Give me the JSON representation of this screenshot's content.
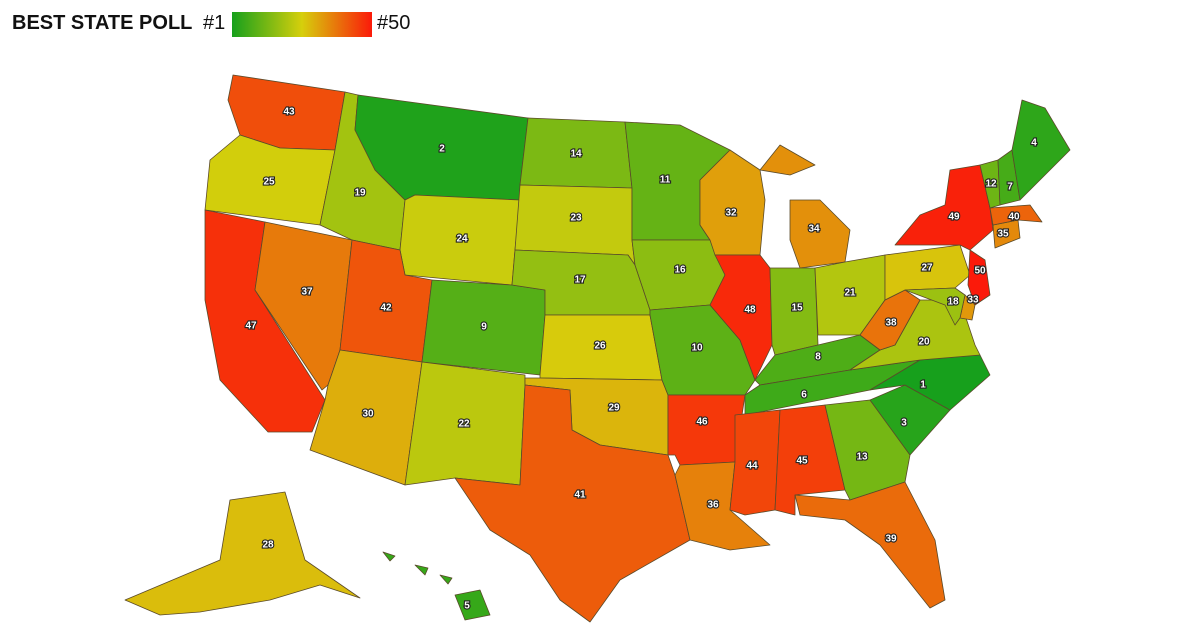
{
  "header": {
    "title": "BEST STATE POLL"
  },
  "legend": {
    "min": {
      "value": 1,
      "label": "#1"
    },
    "max": {
      "value": 50,
      "label": "#50"
    },
    "colors": [
      "#17a01c",
      "#d6cf0c",
      "#fb1a0a"
    ]
  },
  "states": [
    43,
    25,
    47,
    37,
    19,
    2,
    24,
    42,
    9,
    30,
    22,
    14,
    23,
    17,
    26,
    29,
    41,
    11,
    16,
    10,
    46,
    36,
    32,
    48,
    34,
    15,
    21,
    8,
    6,
    44,
    45,
    13,
    39,
    3,
    1,
    20,
    38,
    27,
    49,
    50,
    33,
    18,
    35,
    40,
    12,
    7,
    4,
    28,
    5
  ]
}
